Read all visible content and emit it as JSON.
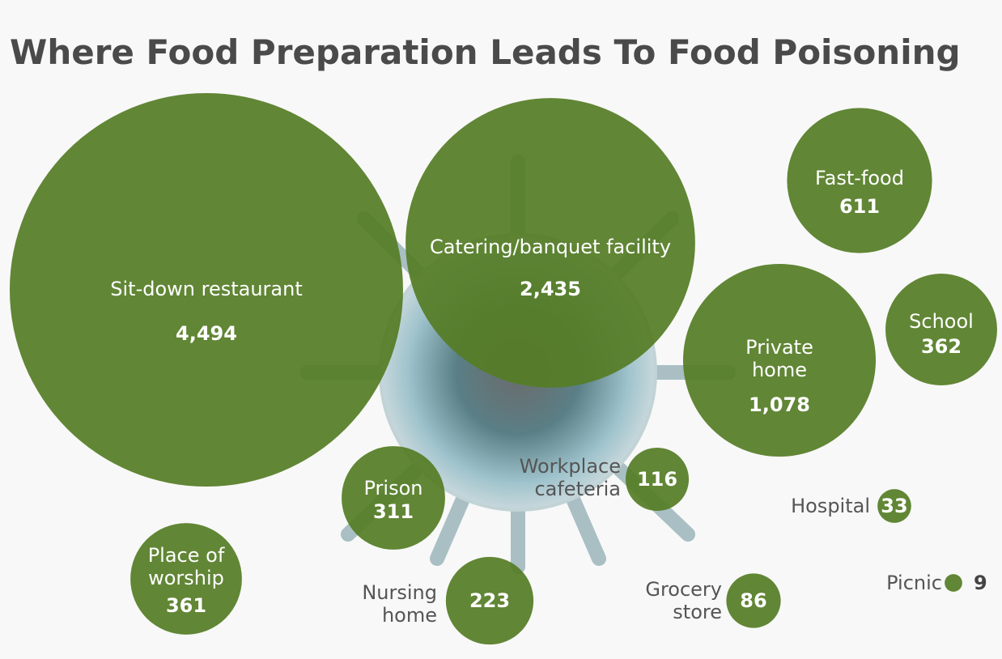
{
  "chart_data": {
    "type": "bubble",
    "title": "Where Food Preparation Leads To Food Poisoning",
    "categories": [
      "Sit-down restaurant",
      "Catering/banquet facility",
      "Fast-food",
      "Private home",
      "School",
      "Prison",
      "Workplace cafeteria",
      "Hospital",
      "Place of worship",
      "Nursing home",
      "Grocery store",
      "Picnic"
    ],
    "values": [
      4494,
      2435,
      611,
      1078,
      362,
      311,
      116,
      33,
      361,
      223,
      86,
      9
    ],
    "value_labels": [
      "4,494",
      "2,435",
      "611",
      "1,078",
      "362",
      "311",
      "116",
      "33",
      "361",
      "223",
      "86",
      "9"
    ],
    "color": "#557d26"
  }
}
